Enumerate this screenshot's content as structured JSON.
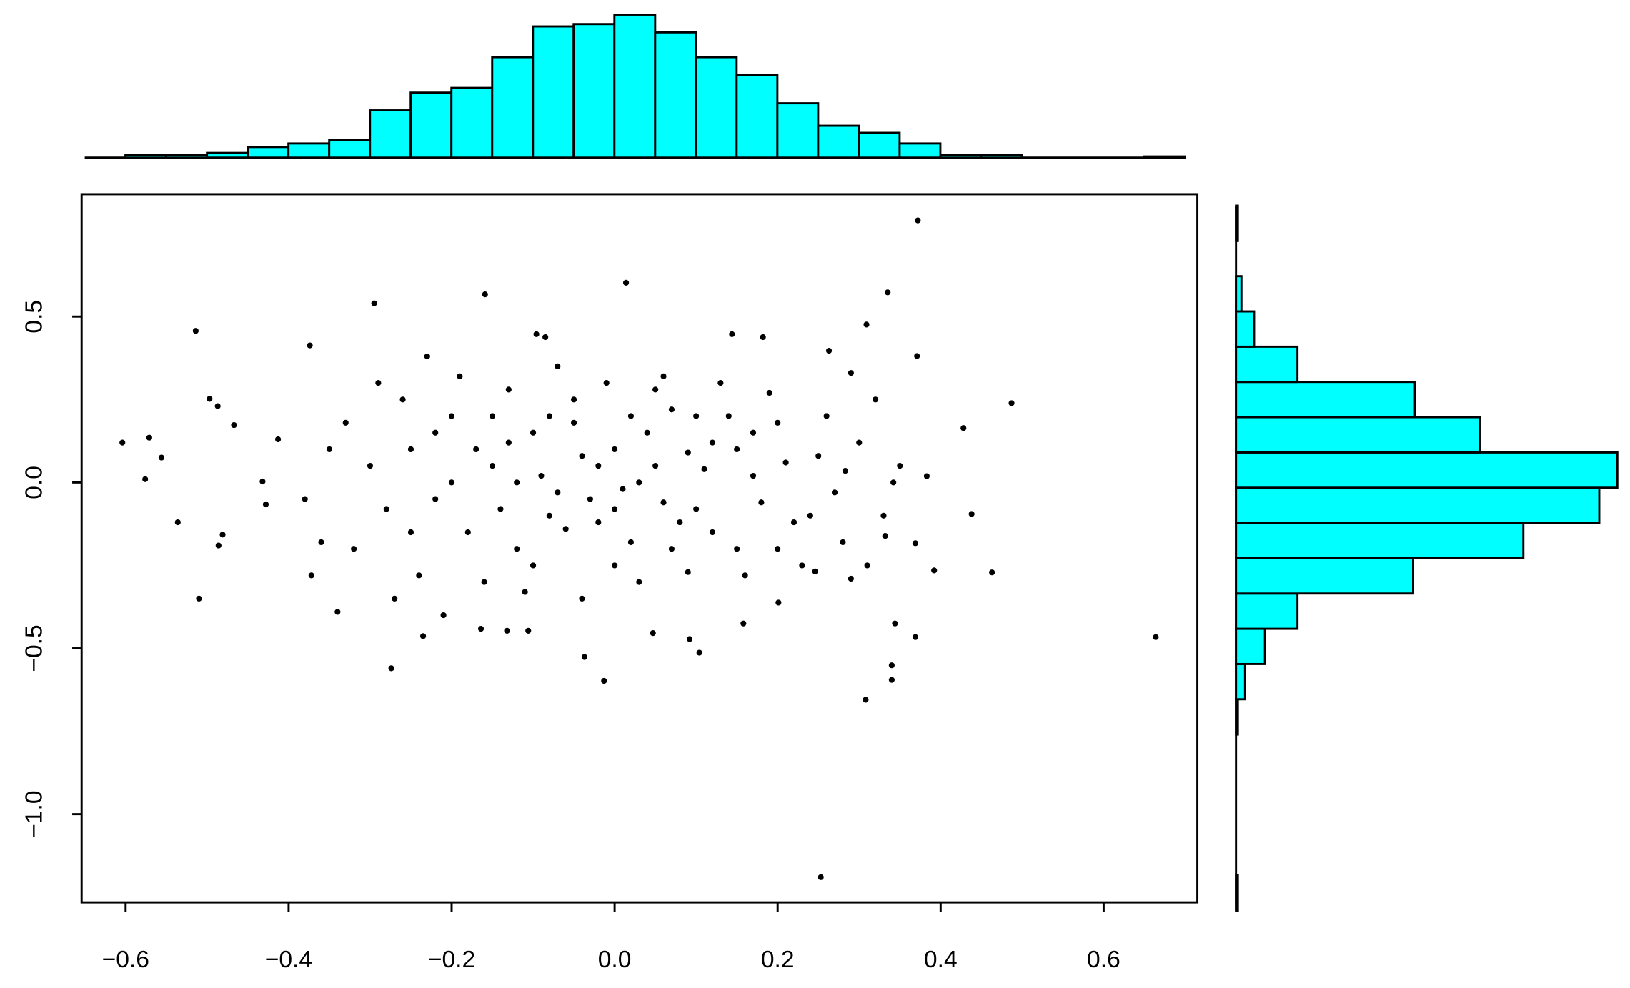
{
  "chart_data": [
    {
      "type": "scatter",
      "color": "#000000",
      "x": [
        -0.604,
        -0.571,
        -0.556,
        -0.576,
        -0.536,
        -0.514,
        -0.51,
        -0.497,
        -0.487,
        -0.481,
        -0.486,
        -0.467,
        -0.432,
        -0.428,
        -0.413,
        -0.374,
        -0.372,
        -0.34,
        -0.295,
        -0.274,
        -0.235,
        -0.159,
        0.014,
        -0.013,
        -0.037,
        -0.096,
        -0.085,
        0.144,
        0.182,
        0.263,
        0.309,
        0.335,
        0.372,
        0.371,
        0.487,
        0.428,
        0.383,
        0.438,
        0.463,
        0.392,
        0.344,
        0.34,
        0.34,
        0.369,
        0.308,
        0.664,
        0.253,
        0.104,
        0.092,
        0.047,
        -0.164,
        -0.132,
        -0.106,
        0.158,
        0.201,
        0.246,
        0.29,
        0.332,
        0.369,
        0.342,
        0.283,
        -0.25,
        -0.22,
        -0.2,
        -0.18,
        -0.15,
        -0.12,
        -0.1,
        -0.08,
        -0.05,
        -0.03,
        0,
        0.02,
        0.05,
        0.07,
        0.1,
        0.12,
        0.15,
        0.17,
        0.2,
        0.22,
        0.25,
        0.27,
        0.3,
        -0.28,
        -0.3,
        -0.32,
        -0.26,
        -0.24,
        -0.19,
        -0.16,
        -0.13,
        -0.11,
        -0.07,
        -0.04,
        -0.01,
        0.03,
        0.06,
        0.09,
        0.13,
        0.16,
        0.19,
        0.23,
        0.26,
        0.28,
        -0.2,
        -0.17,
        -0.14,
        -0.09,
        -0.06,
        -0.02,
        0.01,
        0.04,
        0.08,
        0.11,
        0.14,
        0.18,
        0.21,
        0.24,
        -0.35,
        -0.38,
        -0.36,
        -0.33,
        -0.29,
        -0.27,
        -0.23,
        -0.21,
        0.32,
        0.33,
        0.35,
        0.31,
        0.29,
        -0.1,
        -0.05,
        0,
        0.05,
        0.1,
        0.15,
        -0.15,
        -0.12,
        -0.08,
        0.03,
        0.06,
        0.09,
        0.12,
        -0.02,
        -0.07,
        -0.13,
        0.17,
        0.2,
        -0.25,
        -0.22,
        0.02,
        0,
        -0.04,
        0.07
      ],
      "values": [
        0.12,
        0.135,
        0.075,
        0.01,
        -0.12,
        0.457,
        -0.35,
        0.252,
        0.23,
        -0.157,
        -0.19,
        0.173,
        0.003,
        -0.066,
        0.13,
        0.413,
        -0.28,
        -0.39,
        0.54,
        -0.56,
        -0.463,
        0.567,
        0.602,
        -0.598,
        -0.526,
        0.447,
        0.438,
        0.447,
        0.438,
        0.397,
        0.476,
        0.573,
        0.79,
        0.381,
        0.239,
        0.164,
        0.019,
        -0.095,
        -0.271,
        -0.265,
        -0.425,
        -0.551,
        -0.595,
        -0.466,
        -0.655,
        -0.466,
        -1.19,
        -0.513,
        -0.472,
        -0.454,
        -0.441,
        -0.447,
        -0.447,
        -0.425,
        -0.362,
        -0.268,
        -0.29,
        -0.161,
        -0.183,
        0,
        0.035,
        0.1,
        -0.05,
        0.2,
        -0.15,
        0.05,
        -0.2,
        0.15,
        -0.1,
        0.25,
        -0.05,
        0.1,
        -0.18,
        0.05,
        0.22,
        -0.08,
        0.12,
        -0.2,
        0.02,
        0.18,
        -0.12,
        0.08,
        -0.03,
        0.12,
        -0.08,
        0.05,
        -0.2,
        0.25,
        -0.28,
        0.32,
        -0.3,
        0.28,
        -0.33,
        0.35,
        -0.35,
        0.3,
        -0.3,
        0.32,
        -0.27,
        0.3,
        -0.28,
        0.27,
        -0.25,
        0.2,
        -0.18,
        0,
        0.1,
        -0.08,
        0.02,
        -0.14,
        0.05,
        -0.02,
        0.15,
        -0.12,
        0.04,
        0.2,
        -0.06,
        0.06,
        -0.1,
        0.1,
        -0.05,
        -0.18,
        0.18,
        0.3,
        -0.35,
        0.38,
        -0.4,
        0.25,
        -0.1,
        0.05,
        -0.25,
        0.33,
        -0.25,
        0.18,
        -0.25,
        0.28,
        0.2,
        0.1,
        0.2,
        0,
        0.2,
        0,
        -0.06,
        0.09,
        -0.15,
        -0.12,
        -0.03,
        0.12,
        0.15,
        -0.2,
        -0.15,
        0.15,
        0.2,
        -0.08,
        0.08,
        -0.2
      ],
      "xlim": [
        -0.654,
        0.715
      ],
      "ylim": [
        -1.266,
        0.869
      ],
      "xticks": [
        {
          "value": -0.6,
          "label": "−0.6"
        },
        {
          "value": -0.4,
          "label": "−0.4"
        },
        {
          "value": -0.2,
          "label": "−0.2"
        },
        {
          "value": 0,
          "label": "0.0"
        },
        0.2,
        0.4,
        0.6
      ],
      "yticks": [
        {
          "value": -1,
          "label": "−1.0"
        },
        {
          "value": -0.5,
          "label": "−0.5"
        },
        {
          "value": 0,
          "label": "0.0"
        },
        0.5
      ]
    },
    {
      "type": "histogram",
      "orientation": "vertical",
      "color": "#00ffff",
      "bins": [
        -0.65,
        -0.6,
        -0.55,
        -0.5,
        -0.45,
        -0.4,
        -0.35,
        -0.3,
        -0.25,
        -0.2,
        -0.15,
        -0.1,
        -0.05,
        0,
        0.05,
        0.1,
        0.15,
        0.2,
        0.25,
        0.3,
        0.35,
        0.4,
        0.45,
        0.5,
        0.55,
        0.6,
        0.65,
        0.7
      ],
      "values": [
        0,
        2,
        2,
        4,
        9,
        12,
        15,
        40,
        55,
        59,
        85,
        111,
        113,
        121,
        106,
        85,
        70,
        46,
        27,
        21,
        12,
        2,
        2,
        0,
        0,
        0,
        1
      ]
    },
    {
      "type": "histogram",
      "orientation": "horizontal",
      "color": "#00ffff",
      "bins": [
        -1.2,
        -1.1,
        -1.0,
        -0.9,
        -0.8,
        -0.7,
        -0.6,
        -0.5,
        -0.4,
        -0.3,
        -0.2,
        -0.1,
        0,
        0.1,
        0.2,
        0.3,
        0.4,
        0.5,
        0.6,
        0.7,
        0.8
      ],
      "values": [
        1,
        0,
        0,
        0,
        0,
        1,
        5,
        16,
        34,
        98,
        159,
        201,
        211,
        135,
        99,
        34,
        10,
        3,
        0,
        1
      ]
    }
  ]
}
